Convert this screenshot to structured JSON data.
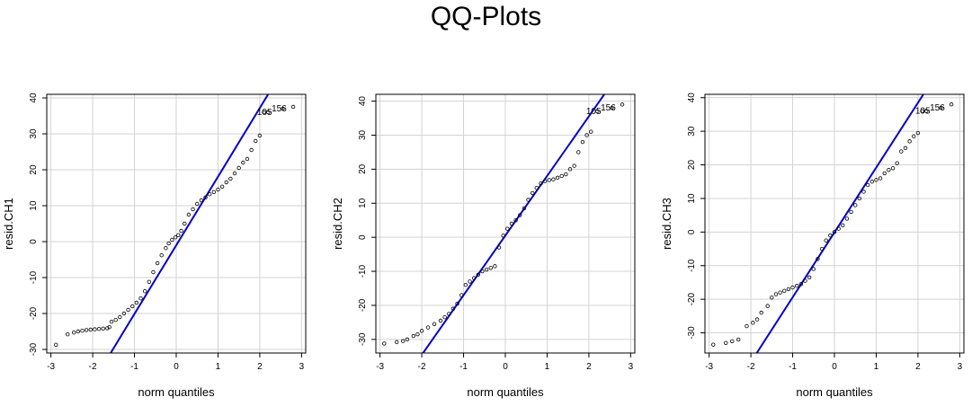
{
  "title": "QQ-Plots",
  "chart_data": [
    {
      "type": "scatter",
      "xlabel": "norm quantiles",
      "ylabel": "resid.CH1",
      "xlim": [
        -3.1,
        3.1
      ],
      "ylim": [
        -31,
        41
      ],
      "xticks": [
        "-3",
        "-2",
        "-1",
        "0",
        "1",
        "2",
        "3"
      ],
      "yticks": [
        "-30",
        "-20",
        "-10",
        "0",
        "10",
        "20",
        "30",
        "40"
      ],
      "grid": true,
      "ref_line": {
        "color": "#0000cc",
        "x": [
          -1.57,
          2.2
        ],
        "y": [
          -31,
          41
        ]
      },
      "labeled_points": [
        {
          "label": "105",
          "x": 2.2,
          "y": 36
        },
        {
          "label": "156",
          "x": 2.55,
          "y": 37
        }
      ],
      "points_sorted_y": [
        [
          -2.88,
          -28.7
        ],
        [
          -2.6,
          -25.8
        ],
        [
          -2.45,
          -25.3
        ],
        [
          -2.35,
          -25
        ],
        [
          -2.25,
          -24.8
        ],
        [
          -2.15,
          -24.6
        ],
        [
          -2.05,
          -24.5
        ],
        [
          -1.95,
          -24.4
        ],
        [
          -1.85,
          -24.3
        ],
        [
          -1.75,
          -24.2
        ],
        [
          -1.65,
          -24.1
        ],
        [
          -1.6,
          -23.8
        ],
        [
          -1.55,
          -22.3
        ],
        [
          -1.45,
          -21.8
        ],
        [
          -1.35,
          -21
        ],
        [
          -1.25,
          -20
        ],
        [
          -1.15,
          -19
        ],
        [
          -1.05,
          -18
        ],
        [
          -0.95,
          -17
        ],
        [
          -0.85,
          -15.8
        ],
        [
          -0.75,
          -13.8
        ],
        [
          -0.65,
          -11.2
        ],
        [
          -0.55,
          -8.5
        ],
        [
          -0.45,
          -6
        ],
        [
          -0.35,
          -3.8
        ],
        [
          -0.25,
          -1.8
        ],
        [
          -0.18,
          -0.5
        ],
        [
          -0.1,
          0.5
        ],
        [
          -0.02,
          1.2
        ],
        [
          0.05,
          1.8
        ],
        [
          0.12,
          3
        ],
        [
          0.2,
          5
        ],
        [
          0.3,
          7.5
        ],
        [
          0.4,
          9
        ],
        [
          0.5,
          10.5
        ],
        [
          0.6,
          11.5
        ],
        [
          0.7,
          12.3
        ],
        [
          0.8,
          13.2
        ],
        [
          0.9,
          13.8
        ],
        [
          1,
          14.5
        ],
        [
          1.1,
          15.3
        ],
        [
          1.2,
          16.5
        ],
        [
          1.3,
          17.5
        ],
        [
          1.4,
          19
        ],
        [
          1.5,
          20.5
        ],
        [
          1.6,
          22
        ],
        [
          1.7,
          23
        ],
        [
          1.8,
          25.5
        ],
        [
          1.9,
          28
        ],
        [
          2,
          29.5
        ],
        [
          2.1,
          36
        ],
        [
          2.2,
          36
        ],
        [
          2.55,
          37
        ],
        [
          2.8,
          37.5
        ]
      ]
    },
    {
      "type": "scatter",
      "xlabel": "norm quantiles",
      "ylabel": "resid.CH2",
      "xlim": [
        -3.1,
        3.1
      ],
      "ylim": [
        -34,
        42
      ],
      "xticks": [
        "-3",
        "-2",
        "-1",
        "0",
        "1",
        "2",
        "3"
      ],
      "yticks": [
        "-30",
        "-20",
        "-10",
        "0",
        "10",
        "20",
        "30",
        "40"
      ],
      "grid": true,
      "ref_line": {
        "color": "#0000cc",
        "x": [
          -1.97,
          2.37
        ],
        "y": [
          -34,
          42
        ]
      },
      "labeled_points": [
        {
          "label": "105",
          "x": 2.2,
          "y": 37
        },
        {
          "label": "156",
          "x": 2.55,
          "y": 38
        }
      ],
      "points_sorted_y": [
        [
          -2.9,
          -31.2
        ],
        [
          -2.6,
          -30.8
        ],
        [
          -2.45,
          -30.5
        ],
        [
          -2.35,
          -30
        ],
        [
          -2.2,
          -29
        ],
        [
          -2.1,
          -28.5
        ],
        [
          -2,
          -27.5
        ],
        [
          -1.85,
          -26.5
        ],
        [
          -1.7,
          -25.5
        ],
        [
          -1.55,
          -24.5
        ],
        [
          -1.45,
          -23.5
        ],
        [
          -1.35,
          -22.5
        ],
        [
          -1.25,
          -21
        ],
        [
          -1.15,
          -19.5
        ],
        [
          -1.05,
          -17
        ],
        [
          -0.95,
          -14
        ],
        [
          -0.85,
          -13
        ],
        [
          -0.75,
          -12
        ],
        [
          -0.65,
          -11
        ],
        [
          -0.55,
          -10
        ],
        [
          -0.45,
          -9.5
        ],
        [
          -0.35,
          -9
        ],
        [
          -0.25,
          -8.5
        ],
        [
          -0.15,
          -3
        ],
        [
          -0.05,
          0.5
        ],
        [
          0.05,
          2.5
        ],
        [
          0.15,
          4
        ],
        [
          0.25,
          5
        ],
        [
          0.35,
          6.5
        ],
        [
          0.45,
          8.5
        ],
        [
          0.55,
          11
        ],
        [
          0.65,
          13
        ],
        [
          0.75,
          14.5
        ],
        [
          0.85,
          15.8
        ],
        [
          0.95,
          16.5
        ],
        [
          1.05,
          16.8
        ],
        [
          1.15,
          17
        ],
        [
          1.25,
          17.5
        ],
        [
          1.35,
          18
        ],
        [
          1.45,
          18.5
        ],
        [
          1.55,
          20
        ],
        [
          1.65,
          21
        ],
        [
          1.75,
          25
        ],
        [
          1.85,
          28
        ],
        [
          1.95,
          30
        ],
        [
          2.05,
          31
        ],
        [
          2.2,
          37
        ],
        [
          2.55,
          38
        ],
        [
          2.8,
          39
        ]
      ]
    },
    {
      "type": "scatter",
      "xlabel": "norm quantiles",
      "ylabel": "resid.CH3",
      "xlim": [
        -3.1,
        3.1
      ],
      "ylim": [
        -36,
        41
      ],
      "xticks": [
        "-3",
        "-2",
        "-1",
        "0",
        "1",
        "2",
        "3"
      ],
      "yticks": [
        "-30",
        "-20",
        "-10",
        "0",
        "10",
        "20",
        "30",
        "40"
      ],
      "grid": true,
      "ref_line": {
        "color": "#0000cc",
        "x": [
          -1.86,
          2.13
        ],
        "y": [
          -36,
          41
        ]
      },
      "labeled_points": [
        {
          "label": "105",
          "x": 2.2,
          "y": 36
        },
        {
          "label": "156",
          "x": 2.55,
          "y": 37
        }
      ],
      "points_sorted_y": [
        [
          -2.9,
          -33.5
        ],
        [
          -2.6,
          -33
        ],
        [
          -2.45,
          -32.5
        ],
        [
          -2.3,
          -32
        ],
        [
          -2.1,
          -28
        ],
        [
          -1.95,
          -27
        ],
        [
          -1.85,
          -26
        ],
        [
          -1.75,
          -24
        ],
        [
          -1.6,
          -22
        ],
        [
          -1.5,
          -19.5
        ],
        [
          -1.4,
          -18.5
        ],
        [
          -1.3,
          -18
        ],
        [
          -1.2,
          -17.5
        ],
        [
          -1.1,
          -17
        ],
        [
          -1,
          -16.5
        ],
        [
          -0.9,
          -16
        ],
        [
          -0.8,
          -15.5
        ],
        [
          -0.7,
          -14.5
        ],
        [
          -0.6,
          -13.5
        ],
        [
          -0.5,
          -11
        ],
        [
          -0.4,
          -8
        ],
        [
          -0.3,
          -5
        ],
        [
          -0.2,
          -2.5
        ],
        [
          -0.1,
          -1
        ],
        [
          0,
          0
        ],
        [
          0.1,
          1
        ],
        [
          0.2,
          2
        ],
        [
          0.3,
          4
        ],
        [
          0.4,
          6
        ],
        [
          0.5,
          8
        ],
        [
          0.6,
          10
        ],
        [
          0.7,
          12
        ],
        [
          0.8,
          14
        ],
        [
          0.9,
          15
        ],
        [
          1,
          15.5
        ],
        [
          1.1,
          16
        ],
        [
          1.2,
          17.5
        ],
        [
          1.3,
          18.5
        ],
        [
          1.4,
          19
        ],
        [
          1.5,
          20.5
        ],
        [
          1.6,
          24
        ],
        [
          1.7,
          25
        ],
        [
          1.8,
          27
        ],
        [
          1.9,
          28.5
        ],
        [
          2,
          29.5
        ],
        [
          2.1,
          36
        ],
        [
          2.2,
          36
        ],
        [
          2.55,
          37
        ],
        [
          2.8,
          38
        ]
      ]
    }
  ]
}
